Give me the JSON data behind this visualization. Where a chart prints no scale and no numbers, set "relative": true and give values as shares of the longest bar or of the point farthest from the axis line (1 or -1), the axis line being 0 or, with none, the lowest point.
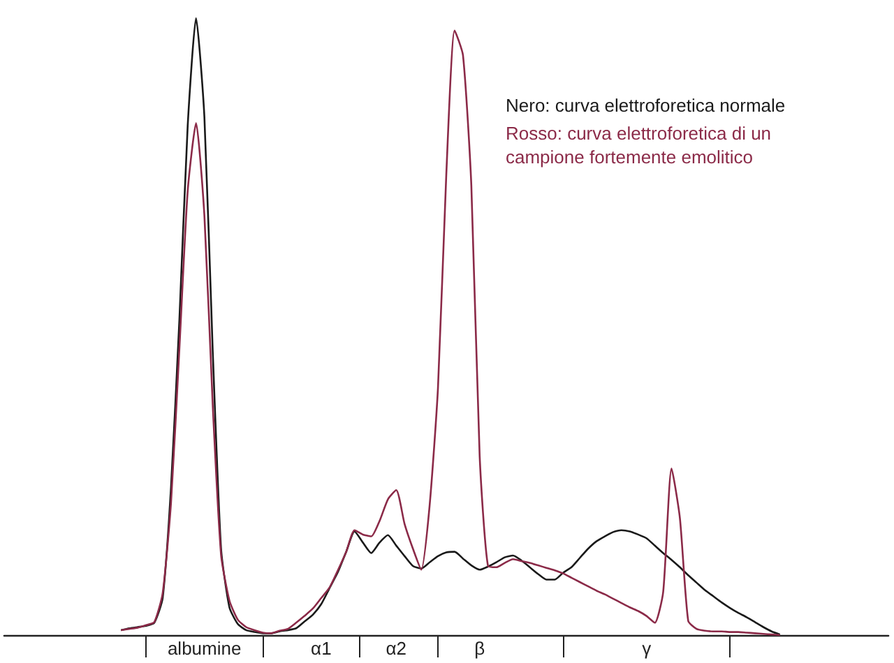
{
  "chart_data": {
    "type": "line",
    "relative": true,
    "categories": [
      null,
      null,
      null,
      null,
      null,
      null,
      null,
      null,
      null,
      null,
      null,
      null,
      null,
      null,
      null,
      null,
      null,
      null,
      null,
      null,
      null,
      null,
      null,
      null,
      "albumine",
      null,
      null,
      null,
      null,
      null,
      null,
      null,
      null,
      null,
      null,
      null,
      null,
      null,
      "α1",
      null,
      null,
      null,
      null,
      null,
      null,
      null,
      null,
      "α2",
      null,
      null,
      null,
      null,
      null,
      null,
      null,
      null,
      null,
      "β",
      null,
      null,
      null,
      null,
      null,
      null,
      null,
      null,
      null,
      null,
      null,
      null,
      null,
      null,
      null,
      null,
      null,
      null,
      null,
      "γ",
      null,
      null,
      null,
      null,
      null,
      null,
      null,
      null,
      null,
      null,
      null,
      null,
      null,
      null,
      null,
      null,
      null,
      null,
      null,
      null,
      null,
      null,
      null,
      null,
      null,
      null,
      null,
      null,
      null
    ],
    "legend": "top right",
    "grid": false,
    "marker": "none",
    "line_style": "solid",
    "series": [
      {
        "name": "Nero: curva elettroforetica normale",
        "color": "#1a1a1a",
        "values": [
          null,
          null,
          null,
          null,
          null,
          null,
          null,
          null,
          null,
          null,
          null,
          null,
          null,
          null,
          0.008,
          0.011,
          0.013,
          0.015,
          0.02,
          0.06,
          0.24,
          0.51,
          0.826,
          1.0,
          0.84,
          0.46,
          0.14,
          0.045,
          0.018,
          0.008,
          0.005,
          0.003,
          0.003,
          0.006,
          0.008,
          0.011,
          0.022,
          0.033,
          0.05,
          0.076,
          0.102,
          0.135,
          0.168,
          0.15,
          0.133,
          0.15,
          0.162,
          0.145,
          0.128,
          0.112,
          0.108,
          0.118,
          0.128,
          0.134,
          0.135,
          0.124,
          0.113,
          0.106,
          0.111,
          0.118,
          0.126,
          0.129,
          0.121,
          0.11,
          0.099,
          0.09,
          0.09,
          0.101,
          0.11,
          0.125,
          0.14,
          0.152,
          0.16,
          0.167,
          0.17,
          0.168,
          0.163,
          0.157,
          0.145,
          0.133,
          0.122,
          0.11,
          0.097,
          0.085,
          0.073,
          0.063,
          0.053,
          0.044,
          0.036,
          0.029,
          0.021,
          0.013,
          0.006,
          0.001,
          null,
          null,
          null,
          null,
          null,
          null,
          null,
          null,
          null,
          null,
          null,
          null,
          null
        ]
      },
      {
        "name": "Rosso: curva elettroforetica di un campione fortemente emolitico",
        "color": "#8b2a48",
        "values": [
          null,
          null,
          null,
          null,
          null,
          null,
          null,
          null,
          null,
          null,
          null,
          null,
          null,
          null,
          0.008,
          0.01,
          0.012,
          0.016,
          0.021,
          0.068,
          0.215,
          0.464,
          0.72,
          0.83,
          0.68,
          0.373,
          0.13,
          0.056,
          0.025,
          0.013,
          0.008,
          0.004,
          0.003,
          0.007,
          0.01,
          0.02,
          0.031,
          0.043,
          0.06,
          0.077,
          0.105,
          0.135,
          0.17,
          0.163,
          0.16,
          0.185,
          0.22,
          0.235,
          0.18,
          0.14,
          0.106,
          0.21,
          0.4,
          0.747,
          0.98,
          0.94,
          0.729,
          0.29,
          0.112,
          0.11,
          0.117,
          0.123,
          0.12,
          0.117,
          0.113,
          0.109,
          0.105,
          0.1,
          0.093,
          0.086,
          0.079,
          0.072,
          0.066,
          0.059,
          0.052,
          0.045,
          0.039,
          0.031,
          0.02,
          0.07,
          0.27,
          0.19,
          0.023,
          0.01,
          0.007,
          0.006,
          0.006,
          0.005,
          0.005,
          0.004,
          0.003,
          0.002,
          0.001,
          0,
          null,
          null,
          null,
          null,
          null,
          null,
          null,
          null,
          null,
          null,
          null,
          null,
          null
        ]
      }
    ]
  }
}
